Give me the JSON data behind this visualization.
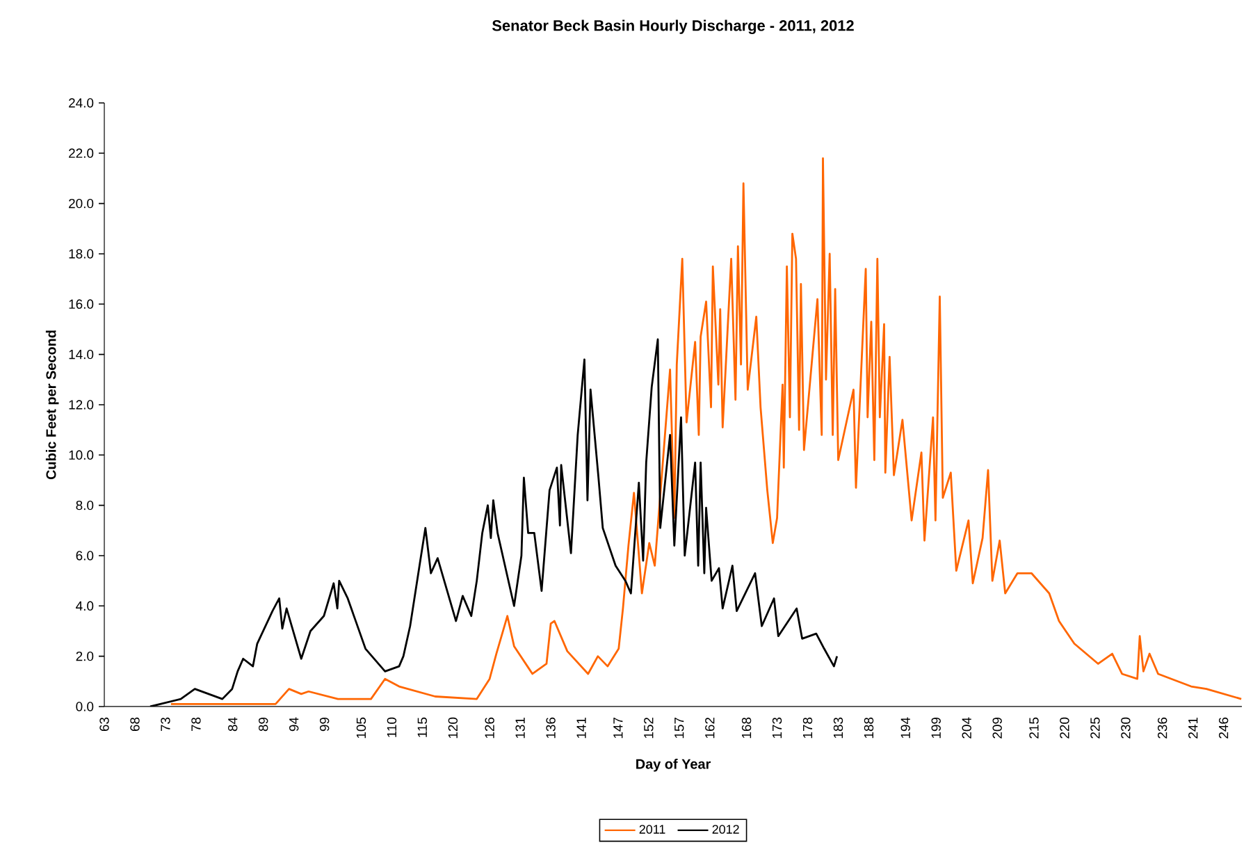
{
  "chart_data": {
    "type": "line",
    "title": "Senator Beck Basin Hourly Discharge - 2011, 2012",
    "xlabel": "Day of Year",
    "ylabel": "Cubic Feet per Second",
    "xlim": [
      63,
      249
    ],
    "xticks": [
      63,
      68,
      73,
      78,
      84,
      89,
      94,
      99,
      105,
      110,
      115,
      120,
      126,
      131,
      136,
      141,
      147,
      152,
      157,
      162,
      168,
      173,
      178,
      183,
      188,
      194,
      199,
      204,
      209,
      215,
      220,
      225,
      230,
      236,
      241,
      246
    ],
    "ylim": [
      0,
      24
    ],
    "yticks": [
      {
        "value": 0,
        "label": "0.0"
      },
      {
        "value": 2,
        "label": "2.0"
      },
      {
        "value": 4,
        "label": "4.0"
      },
      {
        "value": 6,
        "label": "6.0"
      },
      {
        "value": 8,
        "label": "8.0"
      },
      {
        "value": 10,
        "label": "10.0"
      },
      {
        "value": 12,
        "label": "12.0"
      },
      {
        "value": 14,
        "label": "14.0"
      },
      {
        "value": 16,
        "label": "16.0"
      },
      {
        "value": 18,
        "label": "18.0"
      },
      {
        "value": 20,
        "label": "20.0"
      },
      {
        "value": 22,
        "label": "22.0"
      },
      {
        "value": 24,
        "label": "24.0"
      }
    ],
    "legend": "bottom",
    "series": [
      {
        "name": "2011",
        "color": "#ff6600",
        "x": [
          73.9,
          91,
          93.2,
          95.2,
          96.4,
          101.2,
          106.6,
          108.9,
          111.2,
          117.1,
          123.9,
          126,
          127.1,
          128.9,
          130,
          133,
          135.3,
          136,
          136.6,
          138.7,
          142.1,
          143.7,
          145.3,
          147.1,
          147.8,
          148.7,
          149.6,
          150.9,
          152.1,
          153,
          153.9,
          155.5,
          156.2,
          156.6,
          157.5,
          158.2,
          159.6,
          160.2,
          160.5,
          161.4,
          162.2,
          162.5,
          163.4,
          163.7,
          164.1,
          165.5,
          166.2,
          166.6,
          167.1,
          167.5,
          168.2,
          169.6,
          170.3,
          171.4,
          172.3,
          173,
          173.9,
          174.1,
          174.6,
          175.1,
          175.5,
          176.1,
          176.6,
          176.9,
          177.4,
          179.6,
          180.3,
          180.5,
          181,
          181.6,
          182.1,
          182.5,
          183,
          185.5,
          185.9,
          187.5,
          187.8,
          188.4,
          188.9,
          189.4,
          189.8,
          190.5,
          190.7,
          191.4,
          192.1,
          193.5,
          195,
          196.6,
          197.1,
          198.5,
          198.9,
          199.6,
          200.1,
          201.4,
          202.3,
          204.3,
          205,
          206.6,
          207.5,
          208.2,
          209.4,
          210.3,
          212.3,
          214.6,
          217.5,
          219.1,
          221.6,
          225.5,
          227.8,
          229.4,
          231.9,
          232.3,
          232.9,
          233.9,
          235.3,
          240.7,
          243.2,
          248.9
        ],
        "values": [
          0.1,
          0.1,
          0.7,
          0.5,
          0.6,
          0.3,
          0.3,
          1.1,
          0.8,
          0.4,
          0.3,
          1.1,
          2.1,
          3.6,
          2.4,
          1.3,
          1.7,
          3.3,
          3.4,
          2.2,
          1.3,
          2.0,
          1.6,
          2.3,
          3.9,
          6.4,
          8.5,
          4.5,
          6.5,
          5.6,
          8.4,
          13.4,
          7.5,
          13.6,
          17.8,
          11.3,
          14.5,
          10.8,
          14.7,
          16.1,
          11.9,
          17.5,
          12.8,
          15.8,
          11.1,
          17.8,
          12.2,
          18.3,
          13.6,
          20.8,
          12.6,
          15.5,
          11.9,
          8.6,
          6.5,
          7.5,
          12.8,
          9.5,
          17.5,
          11.5,
          18.8,
          17.8,
          11.0,
          16.8,
          10.2,
          16.2,
          10.8,
          21.8,
          13.0,
          18.0,
          10.8,
          16.6,
          9.8,
          12.6,
          8.7,
          17.4,
          11.5,
          15.3,
          9.8,
          17.8,
          11.5,
          15.2,
          9.3,
          13.9,
          9.2,
          11.4,
          7.4,
          10.1,
          6.6,
          11.5,
          7.4,
          16.3,
          8.3,
          9.3,
          5.4,
          7.4,
          4.9,
          6.7,
          9.4,
          5.0,
          6.6,
          4.5,
          5.3,
          5.3,
          4.5,
          3.4,
          2.5,
          1.7,
          2.1,
          1.3,
          1.1,
          2.8,
          1.4,
          2.1,
          1.3,
          0.8,
          0.7,
          0.3
        ]
      },
      {
        "name": "2012",
        "color": "#000000",
        "x": [
          70.5,
          75.5,
          77.8,
          82.3,
          83.9,
          84.8,
          85.7,
          87.3,
          88,
          90.5,
          91.6,
          92.1,
          92.8,
          95.2,
          96.7,
          98.9,
          100.5,
          101.1,
          101.4,
          102.8,
          105.7,
          108.9,
          111.2,
          111.9,
          113,
          114.6,
          115.5,
          116.4,
          117.5,
          120.5,
          121.6,
          123,
          123.9,
          124.8,
          125.7,
          126.2,
          126.6,
          127.3,
          130,
          131.2,
          131.6,
          132.3,
          133.3,
          134.5,
          135.8,
          137,
          137.5,
          137.7,
          139.3,
          140.4,
          141.5,
          142,
          142.5,
          143.8,
          144.5,
          146.6,
          148.2,
          149.1,
          150.4,
          151.1,
          151.6,
          152.5,
          153.5,
          153.9,
          155.5,
          156.2,
          157.3,
          157.9,
          159.6,
          160.1,
          160.5,
          161.1,
          161.4,
          162.3,
          163.5,
          164.1,
          165.7,
          166.4,
          169.4,
          170.5,
          172.5,
          173.2,
          176.2,
          177.1,
          179.4,
          180.7,
          182.3,
          182.8
        ],
        "values": [
          0.0,
          0.3,
          0.7,
          0.3,
          0.7,
          1.4,
          1.9,
          1.6,
          2.5,
          3.8,
          4.3,
          3.1,
          3.9,
          1.9,
          3.0,
          3.6,
          4.9,
          3.9,
          5.0,
          4.3,
          2.3,
          1.4,
          1.6,
          2.0,
          3.2,
          5.7,
          7.1,
          5.3,
          5.9,
          3.4,
          4.4,
          3.6,
          5.0,
          6.9,
          8.0,
          6.7,
          8.2,
          6.9,
          4.0,
          6.0,
          9.1,
          6.9,
          6.9,
          4.6,
          8.6,
          9.5,
          7.2,
          9.6,
          6.1,
          10.8,
          13.8,
          8.2,
          12.6,
          9.1,
          7.1,
          5.6,
          5.0,
          4.5,
          8.9,
          5.8,
          9.7,
          12.7,
          14.6,
          7.1,
          10.8,
          6.4,
          11.5,
          6.0,
          9.7,
          5.6,
          9.7,
          5.3,
          7.9,
          5.0,
          5.5,
          3.9,
          5.6,
          3.8,
          5.3,
          3.2,
          4.3,
          2.8,
          3.9,
          2.7,
          2.9,
          2.3,
          1.6,
          2.0
        ]
      }
    ]
  }
}
